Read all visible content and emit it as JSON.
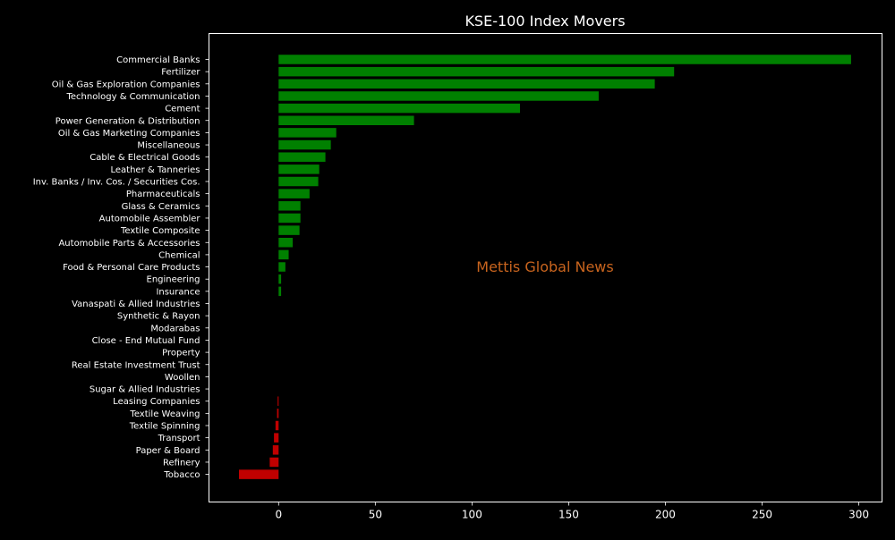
{
  "chart_data": {
    "type": "bar",
    "orientation": "horizontal",
    "title": "KSE-100 Index Movers",
    "watermark": "Mettis Global News",
    "xlabel": "",
    "ylabel": "",
    "xlim": [
      -36,
      312
    ],
    "xticks": [
      0,
      50,
      100,
      150,
      200,
      250,
      300
    ],
    "grid": false,
    "legend": "none",
    "colors": {
      "background": "#000000",
      "positive": "#008000",
      "negative": "#c00000",
      "text": "#ffffff",
      "axes": "#ffffff",
      "watermark": "#c8641e"
    },
    "categories": [
      "Commercial Banks",
      "Fertilizer",
      "Oil & Gas Exploration Companies",
      "Technology & Communication",
      "Cement",
      "Power Generation & Distribution",
      "Oil & Gas Marketing Companies",
      "Miscellaneous",
      "Cable & Electrical Goods",
      "Leather & Tanneries",
      "Inv. Banks / Inv. Cos. / Securities Cos.",
      "Pharmaceuticals",
      "Glass & Ceramics",
      "Automobile Assembler",
      "Textile Composite",
      "Automobile Parts & Accessories",
      "Chemical",
      "Food & Personal Care Products",
      "Engineering",
      "Insurance",
      "Vanaspati & Allied Industries",
      "Synthetic & Rayon",
      "Modarabas",
      "Close - End Mutual Fund",
      "Property",
      "Real Estate Investment Trust",
      "Woollen",
      "Sugar & Allied Industries",
      "Leasing Companies",
      "Textile Weaving",
      "Textile Spinning",
      "Transport",
      "Paper & Board",
      "Refinery",
      "Tobacco"
    ],
    "values": [
      296,
      204.5,
      194.5,
      165.5,
      124.8,
      70,
      29.8,
      27,
      24.2,
      21,
      20.5,
      16,
      11.3,
      11.3,
      10.8,
      7.3,
      5.2,
      3.5,
      1.3,
      1.3,
      0,
      0,
      0,
      0,
      0,
      0,
      0,
      0,
      -0.5,
      -0.8,
      -1.6,
      -2.4,
      -3,
      -4.6,
      -20.5
    ]
  }
}
